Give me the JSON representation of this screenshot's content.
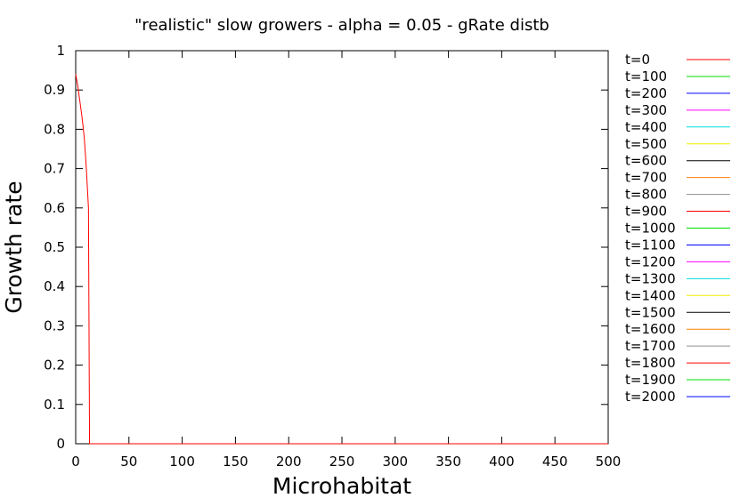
{
  "chart_data": {
    "type": "line",
    "title": "\"realistic\" slow growers - alpha = 0.05 - gRate distb",
    "xlabel": "Microhabitat",
    "ylabel": "Growth rate",
    "xlim": [
      0,
      500
    ],
    "ylim": [
      0,
      1
    ],
    "xticks": [
      "0",
      "50",
      "100",
      "150",
      "200",
      "250",
      "300",
      "350",
      "400",
      "450",
      "500"
    ],
    "yticks": [
      "0",
      "0.1",
      "0.2",
      "0.3",
      "0.4",
      "0.5",
      "0.6",
      "0.7",
      "0.8",
      "0.9",
      "1"
    ],
    "grid": false,
    "legend_position": "right",
    "series": [
      {
        "name": "t=0",
        "color": "#ff0000",
        "x": [
          0,
          2,
          4,
          6,
          8,
          10,
          11,
          12,
          12.5,
          13,
          14,
          500
        ],
        "y": [
          0.94,
          0.91,
          0.87,
          0.83,
          0.78,
          0.7,
          0.65,
          0.6,
          0.3,
          0.0,
          0.0,
          0.0
        ]
      },
      {
        "name": "t=100",
        "color": "#00dd00",
        "x": [],
        "y": []
      },
      {
        "name": "t=200",
        "color": "#0000ff",
        "x": [],
        "y": []
      },
      {
        "name": "t=300",
        "color": "#ff00ff",
        "x": [],
        "y": []
      },
      {
        "name": "t=400",
        "color": "#00dddd",
        "x": [],
        "y": []
      },
      {
        "name": "t=500",
        "color": "#eeee00",
        "x": [],
        "y": []
      },
      {
        "name": "t=600",
        "color": "#000000",
        "x": [],
        "y": []
      },
      {
        "name": "t=700",
        "color": "#ff8000",
        "x": [],
        "y": []
      },
      {
        "name": "t=800",
        "color": "#909090",
        "x": [],
        "y": []
      },
      {
        "name": "t=900",
        "color": "#ff0000",
        "x": [],
        "y": []
      },
      {
        "name": "t=1000",
        "color": "#00dd00",
        "x": [],
        "y": []
      },
      {
        "name": "t=1100",
        "color": "#0000ff",
        "x": [],
        "y": []
      },
      {
        "name": "t=1200",
        "color": "#ff00ff",
        "x": [],
        "y": []
      },
      {
        "name": "t=1300",
        "color": "#00dddd",
        "x": [],
        "y": []
      },
      {
        "name": "t=1400",
        "color": "#eeee00",
        "x": [],
        "y": []
      },
      {
        "name": "t=1500",
        "color": "#000000",
        "x": [],
        "y": []
      },
      {
        "name": "t=1600",
        "color": "#ff8000",
        "x": [],
        "y": []
      },
      {
        "name": "t=1700",
        "color": "#909090",
        "x": [],
        "y": []
      },
      {
        "name": "t=1800",
        "color": "#ff0000",
        "x": [],
        "y": []
      },
      {
        "name": "t=1900",
        "color": "#00dd00",
        "x": [],
        "y": []
      },
      {
        "name": "t=2000",
        "color": "#0000ff",
        "x": [],
        "y": []
      }
    ]
  }
}
